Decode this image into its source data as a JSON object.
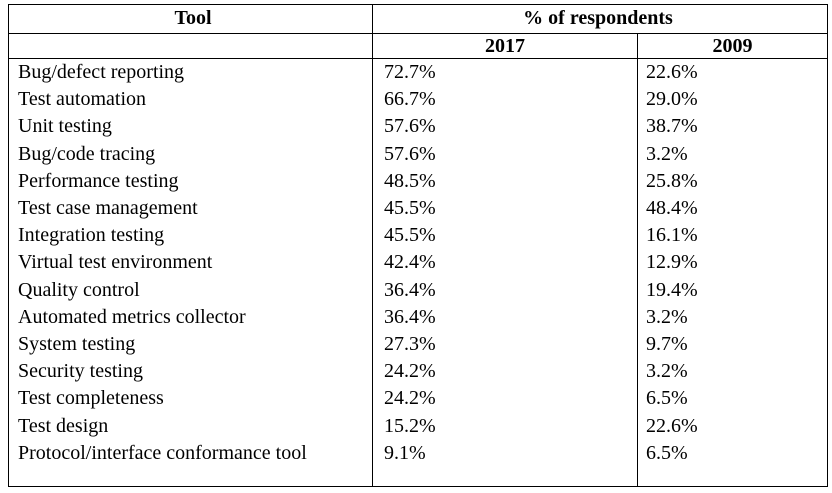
{
  "table": {
    "header": {
      "tool": "Tool",
      "percent": "% of respondents",
      "year_2017": "2017",
      "year_2009": "2009"
    },
    "rows": [
      {
        "tool": "Bug/defect reporting",
        "y2017": "72.7%",
        "y2009": "22.6%"
      },
      {
        "tool": "Test automation",
        "y2017": "66.7%",
        "y2009": "29.0%"
      },
      {
        "tool": "Unit testing",
        "y2017": "57.6%",
        "y2009": "38.7%"
      },
      {
        "tool": "Bug/code tracing",
        "y2017": "57.6%",
        "y2009": "3.2%"
      },
      {
        "tool": "Performance testing",
        "y2017": "48.5%",
        "y2009": "25.8%"
      },
      {
        "tool": "Test case management",
        "y2017": "45.5%",
        "y2009": "48.4%"
      },
      {
        "tool": "Integration testing",
        "y2017": "45.5%",
        "y2009": "16.1%"
      },
      {
        "tool": "Virtual test environment",
        "y2017": "42.4%",
        "y2009": "12.9%"
      },
      {
        "tool": "Quality control",
        "y2017": "36.4%",
        "y2009": "19.4%"
      },
      {
        "tool": "Automated metrics collector",
        "y2017": "36.4%",
        "y2009": "3.2%"
      },
      {
        "tool": "System testing",
        "y2017": "27.3%",
        "y2009": "9.7%"
      },
      {
        "tool": "Security testing",
        "y2017": "24.2%",
        "y2009": "3.2%"
      },
      {
        "tool": "Test completeness",
        "y2017": "24.2%",
        "y2009": "6.5%"
      },
      {
        "tool": "Test design",
        "y2017": "15.2%",
        "y2009": "22.6%"
      },
      {
        "tool": "Protocol/interface conformance tool",
        "y2017": "9.1%",
        "y2009": "6.5%"
      }
    ]
  }
}
